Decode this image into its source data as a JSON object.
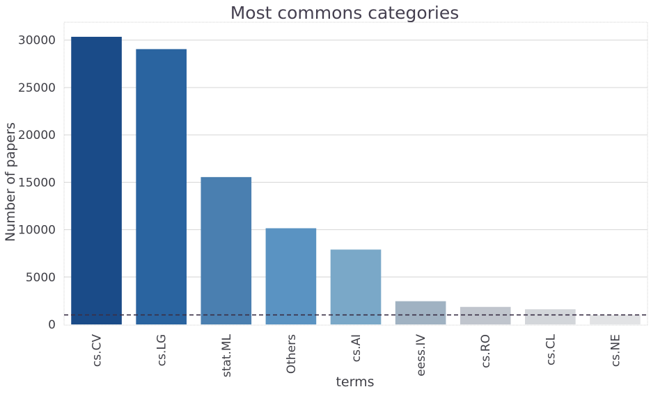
{
  "chart_data": {
    "type": "bar",
    "title": "Most commons categories",
    "xlabel": "terms",
    "ylabel": "Number of papers",
    "categories": [
      "cs.CV",
      "cs.LG",
      "stat.ML",
      "Others",
      "cs.AI",
      "eess.IV",
      "cs.RO",
      "cs.CL",
      "cs.NE"
    ],
    "values": [
      30350,
      29050,
      15550,
      10150,
      7900,
      2450,
      1850,
      1600,
      1000
    ],
    "colors": [
      "#1a4b88",
      "#2a64a0",
      "#4a7fb0",
      "#5a93c2",
      "#7aa8c8",
      "#a0b2c2",
      "#c0c5cd",
      "#d3d6da",
      "#e2e3e5"
    ],
    "ylim": [
      0,
      32000
    ],
    "yticks": [
      0,
      5000,
      10000,
      15000,
      20000,
      25000,
      30000
    ],
    "reference_line": {
      "value": 1000,
      "style": "dashed",
      "color": "#3a2f45"
    },
    "grid": "horizontal",
    "legend": "none"
  }
}
